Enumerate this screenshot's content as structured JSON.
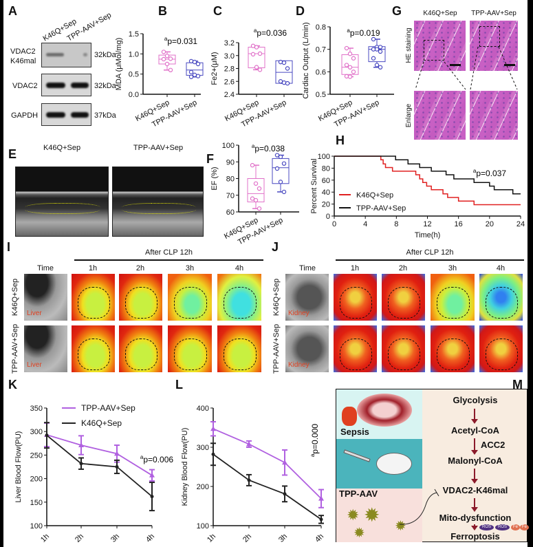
{
  "panel_labels": {
    "A": "A",
    "B": "B",
    "C": "C",
    "D": "D",
    "E": "E",
    "F": "F",
    "G": "G",
    "H": "H",
    "I": "I",
    "J": "J",
    "K": "K",
    "L": "L",
    "M": "M"
  },
  "blot": {
    "columns": [
      "K46Q+Sep",
      "TPP-AAV+Sep"
    ],
    "rows": [
      {
        "name1": "VDAC2",
        "name2": "K46mal",
        "kda": "32kDa"
      },
      {
        "name1": "VDAC2",
        "kda": "32kDa"
      },
      {
        "name1": "GAPDH",
        "kda": "37kDa"
      }
    ]
  },
  "echo": {
    "titles": [
      "K46Q+Sep",
      "TPP-AAV+Sep"
    ]
  },
  "histology": {
    "columns": [
      "K46Q+Sep",
      "TPP-AAV+Sep"
    ],
    "rows": [
      "HE staining",
      "Enlarge"
    ]
  },
  "perfusion_liver": {
    "header": "After CLP 12h",
    "time_label": "Time",
    "times": [
      "1h",
      "2h",
      "3h",
      "4h"
    ],
    "rows": [
      "K46Q+Sep",
      "TPP-AAV+Sep"
    ],
    "organ": "Liver"
  },
  "perfusion_kidney": {
    "header": "After CLP 12h",
    "time_label": "Time",
    "times": [
      "1h",
      "2h",
      "3h",
      "4h"
    ],
    "rows": [
      "K46Q+Sep",
      "TPP-AAV+Sep"
    ],
    "organ": "Kidney"
  },
  "mechanism": {
    "left": [
      "Sepsis",
      "TPP-AAV"
    ],
    "pathway": [
      "Glycolysis",
      "Acetyl-CoA",
      "Malonyl-CoA",
      "VDAC2-K46mal",
      "Mito-dysfunction",
      "Ferroptosis"
    ],
    "enzyme": "ACC2",
    "badges": [
      "ROS",
      "Fe"
    ]
  },
  "colors": {
    "k46q_box": "#e070c8",
    "tpp_box": "#4848c0",
    "k46q_survival": "#e02020",
    "tpp_survival": "#111111",
    "tpp_line": "#b060e0",
    "k46q_line": "#222222"
  },
  "chart_data": [
    {
      "id": "B",
      "type": "box",
      "ylabel": "MDA (μMol/mg)",
      "ylim": [
        0,
        1.5
      ],
      "yticks": [
        "0.0",
        "0.5",
        "1.0",
        "1.5"
      ],
      "ytick_values": [
        0,
        0.5,
        1.0,
        1.5
      ],
      "p_sup": "a",
      "p": "p=0.031",
      "categories": [
        "K46Q+Sep",
        "TPP-AAV+Sep"
      ],
      "groups": [
        {
          "points": [
            1.05,
            0.95,
            0.88,
            0.87,
            0.75,
            0.6
          ],
          "q1": 0.75,
          "median": 0.87,
          "q3": 0.97
        },
        {
          "points": [
            0.82,
            0.8,
            0.75,
            0.55,
            0.48,
            0.45,
            0.43
          ],
          "q1": 0.47,
          "median": 0.6,
          "q3": 0.78
        }
      ]
    },
    {
      "id": "C",
      "type": "box",
      "ylabel": "Fe2+(μM)",
      "ylim": [
        2.4,
        3.2
      ],
      "yticks": [
        "2.4",
        "2.6",
        "2.8",
        "3.0",
        "3.2"
      ],
      "ytick_values": [
        2.4,
        2.6,
        2.8,
        3.0,
        3.2
      ],
      "p_sup": "a",
      "p": "p=0.036",
      "categories": [
        "K46Q+Sep",
        "TPP-AAV+Sep"
      ],
      "groups": [
        {
          "points": [
            3.15,
            3.13,
            3.03,
            3.02,
            2.82,
            2.78
          ],
          "q1": 2.81,
          "median": 3.03,
          "q3": 3.13
        },
        {
          "points": [
            2.9,
            2.89,
            2.8,
            2.6,
            2.58,
            2.57
          ],
          "q1": 2.57,
          "median": 2.74,
          "q3": 2.92
        }
      ]
    },
    {
      "id": "D",
      "type": "box",
      "ylabel": "Cardiac Output (L/min)",
      "ylim": [
        0.5,
        0.8
      ],
      "yticks": [
        "0.5",
        "0.6",
        "0.7",
        "0.8"
      ],
      "ytick_values": [
        0.5,
        0.6,
        0.7,
        0.8
      ],
      "p_sup": "a",
      "p": "p=0.019",
      "categories": [
        "K46Q+Sep",
        "TPP-AAV+Sep"
      ],
      "groups": [
        {
          "points": [
            0.705,
            0.68,
            0.66,
            0.63,
            0.62,
            0.6,
            0.58,
            0.578
          ],
          "q1": 0.588,
          "median": 0.62,
          "q3": 0.676
        },
        {
          "points": [
            0.745,
            0.71,
            0.71,
            0.7,
            0.7,
            0.69,
            0.66,
            0.63,
            0.62
          ],
          "q1": 0.645,
          "median": 0.7,
          "q3": 0.712
        }
      ]
    },
    {
      "id": "F",
      "type": "box",
      "ylabel": "EF (%)",
      "ylim": [
        60,
        100
      ],
      "yticks": [
        "60",
        "70",
        "80",
        "90",
        "100"
      ],
      "ytick_values": [
        60,
        70,
        80,
        90,
        100
      ],
      "p_sup": "a",
      "p": "p=0.038",
      "categories": [
        "K46Q+Sep",
        "TPP-AAV+Sep"
      ],
      "groups": [
        {
          "points": [
            88,
            77,
            74,
            68,
            67,
            62
          ],
          "q1": 66,
          "median": 71,
          "q3": 80
        },
        {
          "points": [
            94,
            93,
            89,
            86,
            78,
            72
          ],
          "q1": 77,
          "median": 86.5,
          "q3": 92
        }
      ]
    },
    {
      "id": "H",
      "type": "line",
      "subtype": "kaplan-meier",
      "xlabel": "Time(h)",
      "ylabel": "Percent Survival",
      "xlim": [
        0,
        24
      ],
      "ylim": [
        0,
        100
      ],
      "xticks": [
        "0",
        "4",
        "8",
        "12",
        "16",
        "20",
        "24"
      ],
      "xtick_values": [
        0,
        4,
        8,
        12,
        16,
        20,
        24
      ],
      "yticks": [
        "0",
        "20",
        "40",
        "60",
        "80",
        "100"
      ],
      "ytick_values": [
        0,
        20,
        40,
        60,
        80,
        100
      ],
      "p_sup": "a",
      "p": "p=0.037",
      "legend": "bottom-left",
      "series": [
        {
          "name": "K46Q+Sep",
          "steps": [
            [
              0,
              100
            ],
            [
              6,
              94
            ],
            [
              6.3,
              87
            ],
            [
              6.6,
              81
            ],
            [
              7.5,
              75
            ],
            [
              10.5,
              69
            ],
            [
              11,
              62
            ],
            [
              11.4,
              56
            ],
            [
              11.9,
              50
            ],
            [
              12.5,
              44
            ],
            [
              14,
              37
            ],
            [
              14.6,
              31
            ],
            [
              16,
              25
            ],
            [
              18,
              19
            ],
            [
              24,
              19
            ]
          ]
        },
        {
          "name": "TPP-AAV+Sep",
          "steps": [
            [
              0,
              100
            ],
            [
              7.9,
              94
            ],
            [
              9.5,
              87
            ],
            [
              11,
              81
            ],
            [
              12.5,
              75
            ],
            [
              14.4,
              69
            ],
            [
              15.4,
              62
            ],
            [
              18,
              56
            ],
            [
              20,
              50
            ],
            [
              20.6,
              44
            ],
            [
              23,
              37
            ],
            [
              24,
              37
            ]
          ]
        }
      ]
    },
    {
      "id": "K",
      "type": "line",
      "ylabel": "Liver Blood Flow(PU)",
      "ylim": [
        100,
        350
      ],
      "yticks": [
        "100",
        "150",
        "200",
        "250",
        "300",
        "350"
      ],
      "ytick_values": [
        100,
        150,
        200,
        250,
        300,
        350
      ],
      "categories": [
        "1h",
        "2h",
        "3h",
        "4h"
      ],
      "p_sup": "a",
      "p": "p=0.006",
      "legend": "top",
      "series": [
        {
          "name": "TPP-AAV+Sep",
          "values": [
            293,
            271,
            253,
            207
          ],
          "errors": [
            25,
            20,
            18,
            12
          ]
        },
        {
          "name": "K46Q+Sep",
          "values": [
            292,
            232,
            225,
            162
          ],
          "errors": [
            27,
            12,
            14,
            30
          ]
        }
      ]
    },
    {
      "id": "L",
      "type": "line",
      "ylabel": "Kidney Blood Flow(PU)",
      "ylim": [
        100,
        400
      ],
      "yticks": [
        "100",
        "200",
        "300",
        "400"
      ],
      "ytick_values": [
        100,
        200,
        300,
        400
      ],
      "categories": [
        "1h",
        "2h",
        "3h",
        "4h"
      ],
      "p_sup": "a",
      "p": "p=0.000",
      "series": [
        {
          "name": "TPP-AAV+Sep",
          "values": [
            347,
            308,
            261,
            169
          ],
          "errors": [
            18,
            8,
            32,
            23
          ]
        },
        {
          "name": "K46Q+Sep",
          "values": [
            282,
            216,
            181,
            116
          ],
          "errors": [
            28,
            14,
            20,
            10
          ]
        }
      ]
    }
  ]
}
